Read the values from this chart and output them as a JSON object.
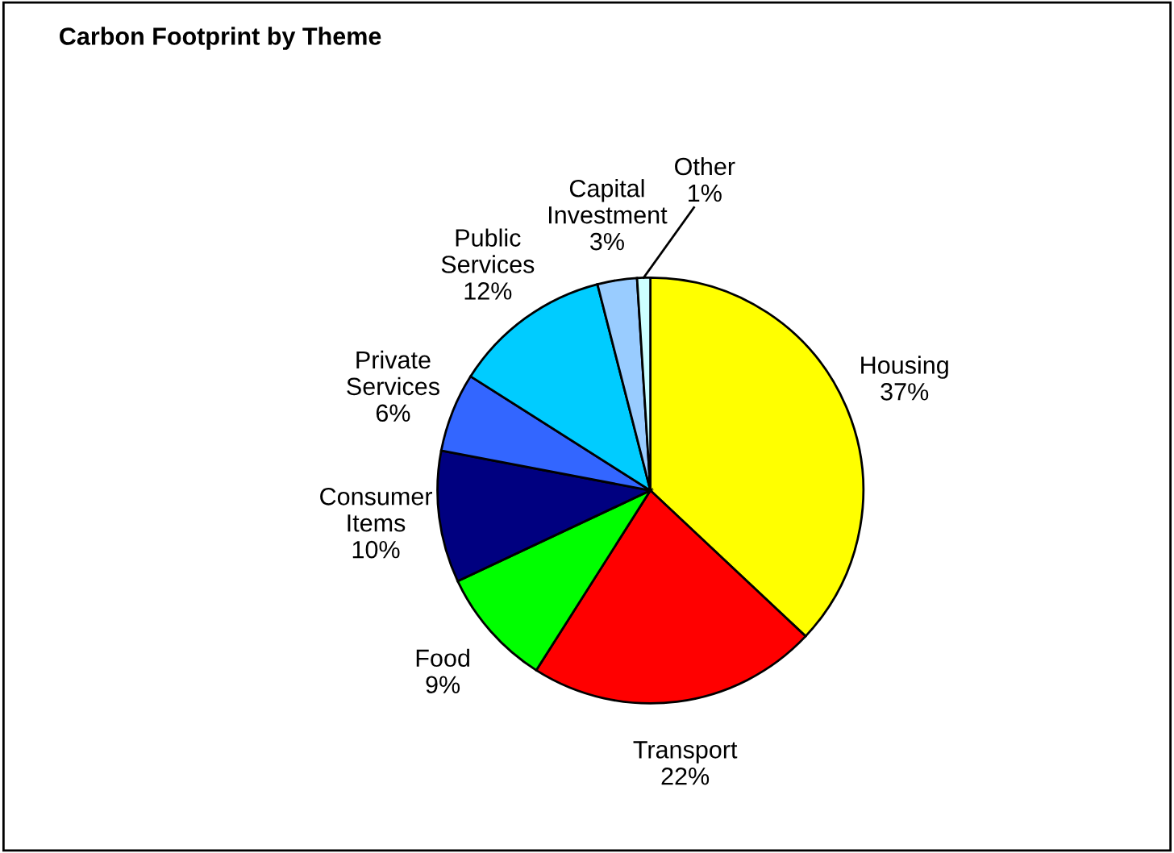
{
  "chart_data": {
    "type": "pie",
    "title": "Carbon Footprint by Theme",
    "categories": [
      "Housing",
      "Transport",
      "Food",
      "Consumer Items",
      "Private Services",
      "Public Services",
      "Capital Investment",
      "Other"
    ],
    "values": [
      37,
      22,
      9,
      10,
      6,
      12,
      3,
      1
    ],
    "value_labels": [
      "37%",
      "22%",
      "9%",
      "10%",
      "6%",
      "12%",
      "3%",
      "1%"
    ],
    "colors": [
      "#ffff00",
      "#ff0000",
      "#00ff00",
      "#000080",
      "#3366ff",
      "#00ccff",
      "#99ccff",
      "#ccffff"
    ],
    "legend": false
  }
}
